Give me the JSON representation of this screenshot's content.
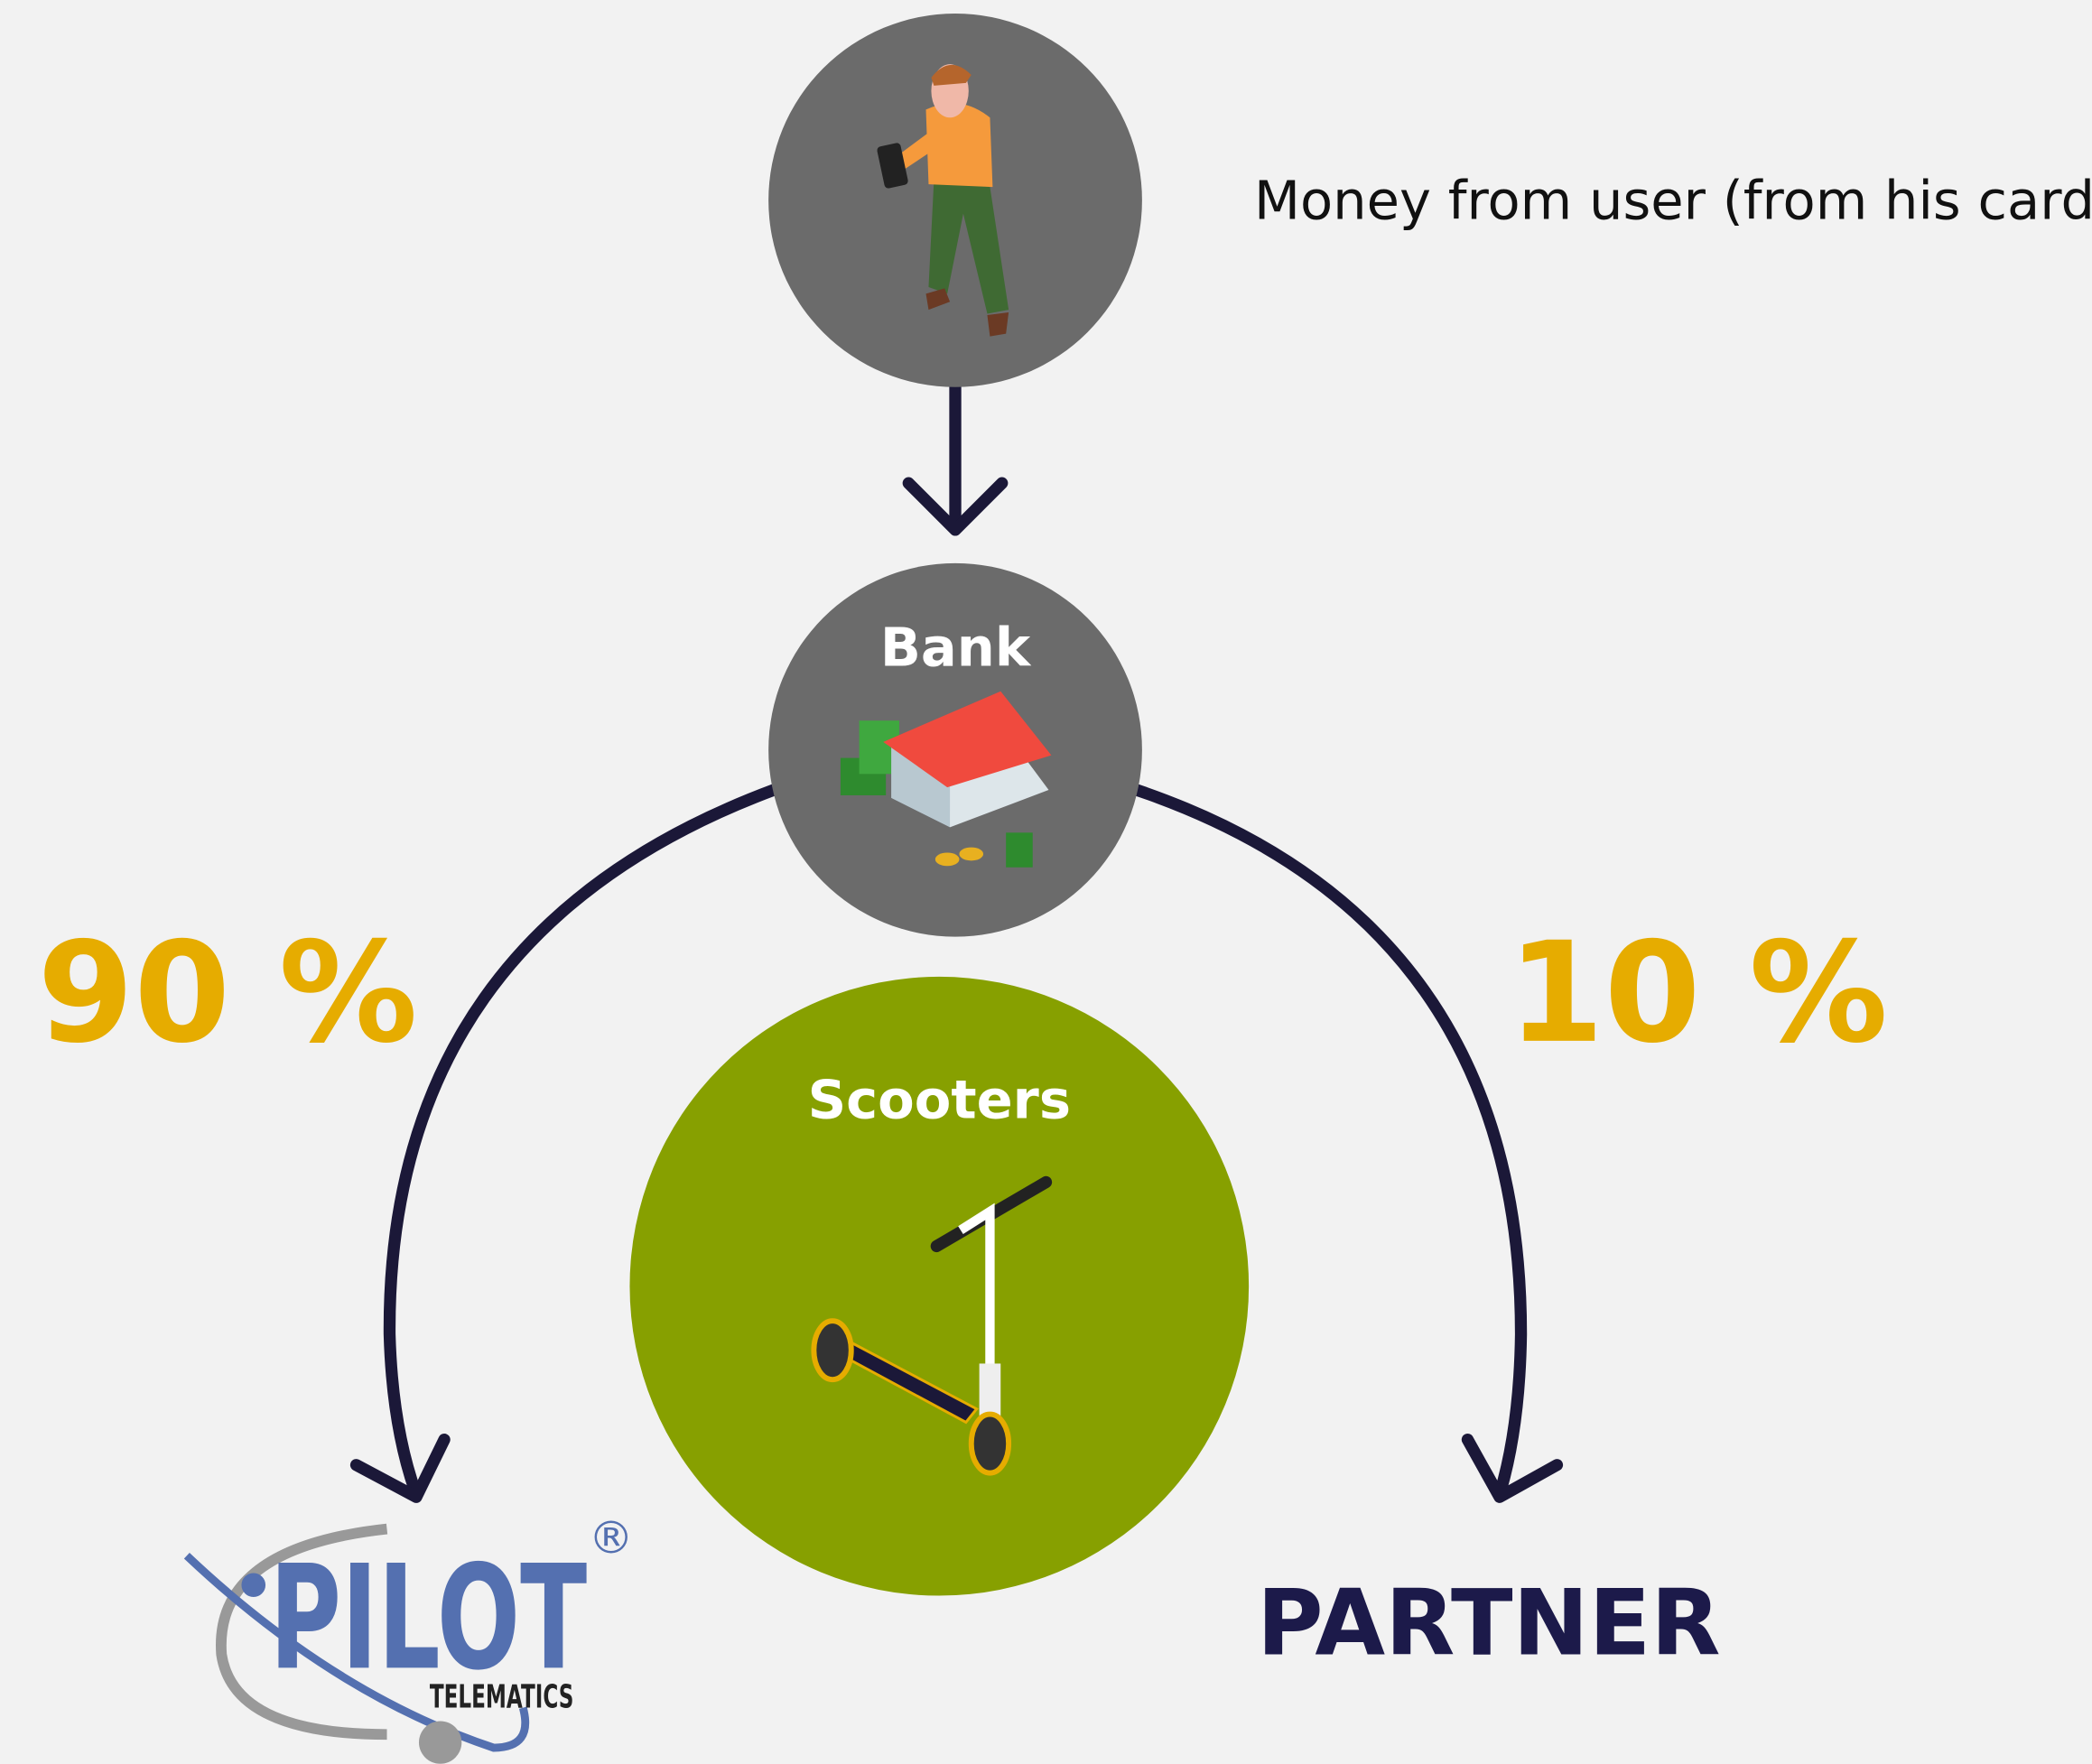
{
  "caption": "Money from user (from his card)",
  "nodes": [
    {
      "label": "Bank"
    },
    {
      "label": "Scooters"
    }
  ],
  "splits": [
    {
      "label": "90 %"
    },
    {
      "label": "10 %"
    }
  ],
  "recipients": {
    "pilot": {
      "name": "PILOT",
      "subtitle": "TELEMATICS",
      "mark": "®"
    },
    "partner": "PARTNER"
  }
}
